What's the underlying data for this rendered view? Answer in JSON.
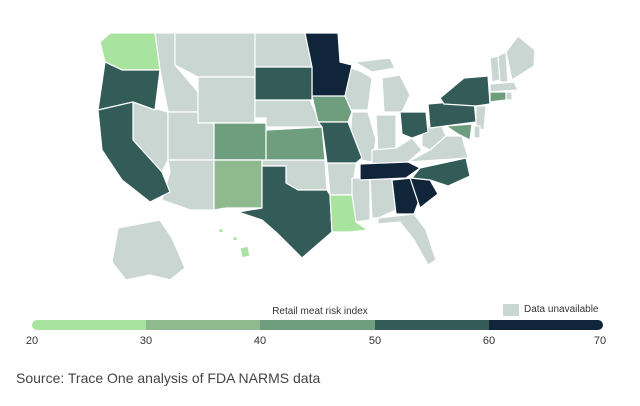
{
  "legend": {
    "title": "Retail meat risk index",
    "unavailable_label": "Data unavailable",
    "ticks": [
      "20",
      "30",
      "40",
      "50",
      "60",
      "70"
    ],
    "colors": [
      "#a9e3a0",
      "#6f9e7e",
      "#8fba90",
      "#335c58",
      "#2e4f4b",
      "#10253a"
    ]
  },
  "na_color": "#c9d6d1",
  "source": "Source: Trace One analysis of FDA NARMS data",
  "states": {
    "WA": {
      "value": 20
    },
    "OR": {
      "value": 50
    },
    "CA": {
      "value": 50
    },
    "MN": {
      "value": 60
    },
    "SD": {
      "value": 50
    },
    "IA": {
      "value": 40
    },
    "MO": {
      "value": 50
    },
    "CO": {
      "value": 40
    },
    "KS": {
      "value": 40
    },
    "NM": {
      "value": 30
    },
    "TX": {
      "value": 50
    },
    "LA": {
      "value": 20
    },
    "TN": {
      "value": 60
    },
    "GA": {
      "value": 60
    },
    "SC": {
      "value": 60
    },
    "NC": {
      "value": 50
    },
    "OH": {
      "value": 50
    },
    "PA": {
      "value": 50
    },
    "NY": {
      "value": 50
    },
    "MD": {
      "value": 40
    },
    "CT": {
      "value": 40
    },
    "HI": {
      "value": 20
    }
  }
}
